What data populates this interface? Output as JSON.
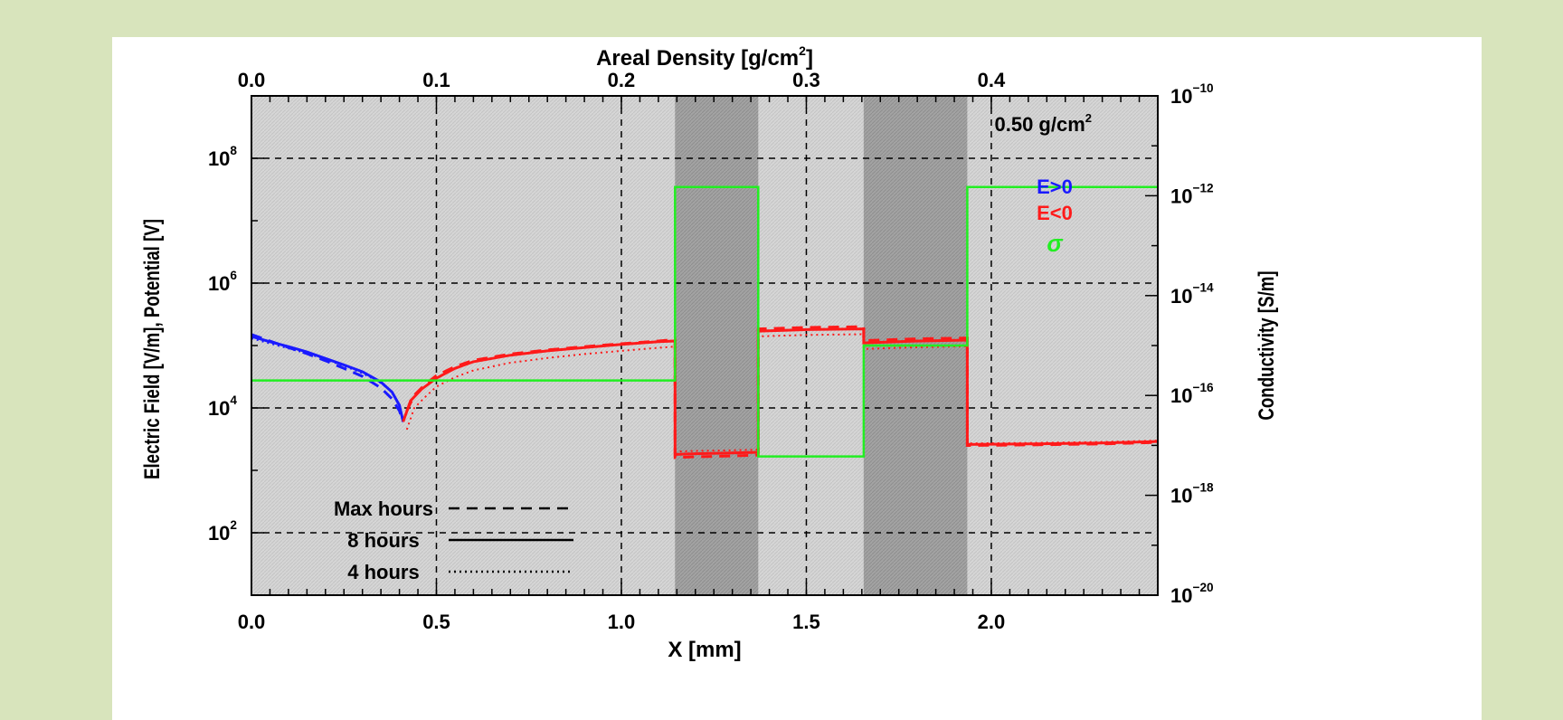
{
  "chart_data": {
    "type": "line",
    "x_axis": {
      "label": "X [mm]",
      "range": [
        0.0,
        2.45
      ],
      "ticks": [
        0.0,
        0.5,
        1.0,
        1.5,
        2.0
      ],
      "tick_labels": [
        "0.0",
        "0.5",
        "1.0",
        "1.5",
        "2.0"
      ],
      "grid_lines": [
        0.5,
        1.0,
        1.5,
        2.0
      ]
    },
    "top_axis": {
      "label": "Areal Density [g/cm²]",
      "range": [
        0.0,
        0.49
      ],
      "ticks": [
        0.0,
        0.1,
        0.2,
        0.3,
        0.4
      ],
      "tick_labels": [
        "0.0",
        "0.1",
        "0.2",
        "0.3",
        "0.4"
      ]
    },
    "y_axis": {
      "label": "Electric Field [V/m], Potential [V]",
      "scale": "log",
      "range": [
        10,
        1000000000
      ],
      "tick_labels": [
        {
          "mantissa": "10",
          "exp": "8",
          "value": 100000000
        },
        {
          "mantissa": "10",
          "exp": "6",
          "value": 1000000
        },
        {
          "mantissa": "10",
          "exp": "4",
          "value": 10000
        },
        {
          "mantissa": "10",
          "exp": "2",
          "value": 100
        }
      ],
      "grid_lines": [
        100,
        10000,
        1000000,
        100000000
      ]
    },
    "y2_axis": {
      "label": "Conductivity [S/m]",
      "scale": "log",
      "range": [
        1e-20,
        1e-10
      ],
      "tick_labels": [
        {
          "mantissa": "10",
          "exp": "−10",
          "value": 1e-10
        },
        {
          "mantissa": "10",
          "exp": "−12",
          "value": 1e-12
        },
        {
          "mantissa": "10",
          "exp": "−14",
          "value": 1e-14
        },
        {
          "mantissa": "10",
          "exp": "−16",
          "value": 1e-16
        },
        {
          "mantissa": "10",
          "exp": "−18",
          "value": 1e-18
        },
        {
          "mantissa": "10",
          "exp": "−20",
          "value": 1e-20
        }
      ]
    },
    "shaded_bands": [
      {
        "x0": 1.145,
        "x1": 1.37
      },
      {
        "x0": 1.655,
        "x1": 1.935
      }
    ],
    "annotation": "0.50 g/cm²",
    "legend_signs": [
      {
        "text": "E>0",
        "color": "#1a1aff"
      },
      {
        "text": "E<0",
        "color": "#ff1a1a"
      },
      {
        "text": "σ",
        "color": "#22ee22"
      }
    ],
    "legend_styles": [
      {
        "label": "Max hours",
        "dash": "12,8"
      },
      {
        "label": "8 hours",
        "dash": ""
      },
      {
        "label": "4 hours",
        "dash": "2,4"
      }
    ],
    "series": [
      {
        "sign": "E>0",
        "style": "8 hours",
        "color": "#1a1aff",
        "x": [
          0.0,
          0.05,
          0.1,
          0.15,
          0.2,
          0.25,
          0.3,
          0.35,
          0.38,
          0.4,
          0.41
        ],
        "y": [
          140000,
          115000,
          96000,
          79000,
          62000,
          49000,
          38000,
          26000,
          18000,
          11000,
          6000
        ]
      },
      {
        "sign": "E>0",
        "style": "Max hours",
        "color": "#1a1aff",
        "x": [
          0.0,
          0.05,
          0.1,
          0.15,
          0.2,
          0.25,
          0.3,
          0.35,
          0.38,
          0.4,
          0.41
        ],
        "y": [
          150000,
          118000,
          93000,
          74000,
          57000,
          43000,
          32000,
          21000,
          14000,
          9000,
          6000
        ]
      },
      {
        "sign": "E>0",
        "style": "4 hours",
        "color": "#1a1aff",
        "x": [
          0.0,
          0.05,
          0.1,
          0.15,
          0.2,
          0.25,
          0.3,
          0.35,
          0.38
        ],
        "y": [
          130000,
          108000,
          90000,
          75000,
          60000,
          47000,
          36000,
          25000,
          18000
        ]
      },
      {
        "sign": "E<0",
        "style": "8 hours",
        "color": "#ff1a1a",
        "x": [
          0.41,
          0.43,
          0.46,
          0.5,
          0.55,
          0.6,
          0.7,
          0.8,
          0.9,
          1.0,
          1.1,
          1.145,
          1.145,
          1.2,
          1.3,
          1.37,
          1.37,
          1.5,
          1.655,
          1.655,
          1.8,
          1.935,
          1.935,
          2.1,
          2.3,
          2.45
        ],
        "y": [
          6000,
          13000,
          20000,
          30000,
          43000,
          55000,
          70000,
          82000,
          93000,
          104000,
          115000,
          118000,
          1800,
          1850,
          1900,
          1950,
          170000,
          180000,
          185000,
          110000,
          118000,
          122000,
          2600,
          2650,
          2750,
          2900
        ]
      },
      {
        "sign": "E<0",
        "style": "Max hours",
        "color": "#ff1a1a",
        "x": [
          0.42,
          0.44,
          0.47,
          0.5,
          0.55,
          0.6,
          0.7,
          0.8,
          0.9,
          1.0,
          1.1,
          1.145,
          1.145,
          1.2,
          1.3,
          1.37,
          1.37,
          1.5,
          1.655,
          1.655,
          1.8,
          1.935,
          1.935,
          2.1,
          2.3,
          2.45
        ],
        "y": [
          9000,
          16000,
          24000,
          33000,
          46000,
          58000,
          73000,
          85000,
          96000,
          107000,
          118000,
          125000,
          1600,
          1650,
          1700,
          1750,
          185000,
          195000,
          200000,
          120000,
          128000,
          132000,
          2500,
          2550,
          2650,
          2800
        ]
      },
      {
        "sign": "E<0",
        "style": "4 hours",
        "color": "#ff1a1a",
        "x": [
          0.42,
          0.44,
          0.47,
          0.5,
          0.55,
          0.6,
          0.7,
          0.8,
          0.9,
          1.0,
          1.1,
          1.145,
          1.145,
          1.2,
          1.3,
          1.37,
          1.37,
          1.5,
          1.655,
          1.655,
          1.8,
          1.935,
          1.935,
          2.1,
          2.3,
          2.45
        ],
        "y": [
          4500,
          10000,
          15000,
          22000,
          31000,
          40000,
          53000,
          63000,
          73000,
          82000,
          92000,
          96000,
          2000,
          2050,
          2100,
          2150,
          140000,
          148000,
          152000,
          88000,
          94000,
          97000,
          2700,
          2750,
          2850,
          3000
        ]
      },
      {
        "sign": "σ",
        "style": "8 hours",
        "color": "#22ee22",
        "axis": "y2",
        "step": true,
        "x": [
          0.0,
          1.145,
          1.145,
          1.37,
          1.37,
          1.655,
          1.655,
          1.935,
          1.935,
          2.45
        ],
        "y": [
          2e-16,
          2e-16,
          1.5e-12,
          1.5e-12,
          6e-18,
          6e-18,
          1e-15,
          1e-15,
          1.5e-12,
          1.5e-12
        ]
      }
    ]
  }
}
